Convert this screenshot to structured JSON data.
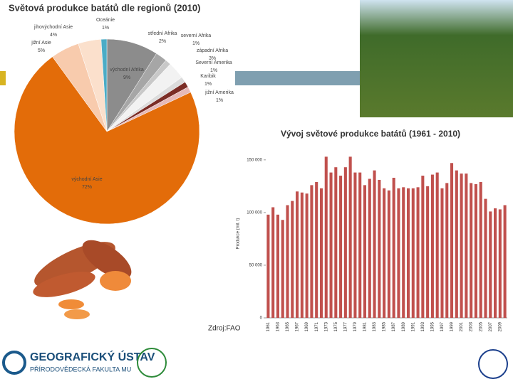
{
  "chart_data": [
    {
      "type": "pie",
      "title": "Světová produkce batátů dle regionů (2010)",
      "categories": [
        "východní Afrika",
        "střední Afrika",
        "severní Afrika",
        "západní Afrika",
        "Severní Amerika",
        "Karibik",
        "jižní Amerika",
        "východní Asie",
        "jižní Asie",
        "jihovýchodní Asie",
        "Oceánie"
      ],
      "values": [
        9,
        2,
        1,
        3,
        1,
        1,
        1,
        72,
        5,
        4,
        1
      ],
      "value_labels": [
        "9%",
        "2%",
        "1%",
        "3%",
        "1%",
        "1%",
        "1%",
        "72%",
        "5%",
        "4%",
        "1%"
      ],
      "colors": [
        "#8c8c8c",
        "#a6a6a6",
        "#c8c8c8",
        "#f2f2f2",
        "#dcdcdc",
        "#7b2d26",
        "#e6b9b8",
        "#e36c09",
        "#f8cbad",
        "#fbe0cc",
        "#4bacc6"
      ]
    },
    {
      "type": "bar",
      "title": "Vývoj světové produkce batátů (1961 - 2010)",
      "y_label": "Produkce (mil. t)",
      "categories": [
        "1961",
        null,
        "1963",
        null,
        "1965",
        null,
        "1967",
        null,
        "1969",
        null,
        "1971",
        null,
        "1973",
        null,
        "1975",
        null,
        "1977",
        null,
        "1979",
        null,
        "1981",
        null,
        "1983",
        null,
        "1985",
        null,
        "1987",
        null,
        "1989",
        null,
        "1991",
        null,
        "1993",
        null,
        "1995",
        null,
        "1997",
        null,
        "1999",
        null,
        "2001",
        null,
        "2003",
        null,
        "2005",
        null,
        "2007",
        null,
        "2009",
        null
      ],
      "values": [
        98000,
        105000,
        98000,
        93000,
        107000,
        111000,
        120000,
        119000,
        118000,
        126000,
        129000,
        123000,
        153000,
        138000,
        143000,
        135000,
        143000,
        153000,
        138000,
        138000,
        126000,
        132000,
        140000,
        131000,
        123000,
        121000,
        133000,
        123000,
        124000,
        123000,
        123000,
        124000,
        135000,
        125000,
        136000,
        138000,
        123000,
        128000,
        147000,
        140000,
        137000,
        137000,
        128000,
        127000,
        129000,
        113000,
        101000,
        104000,
        103000,
        107000
      ],
      "color": "#c0504d",
      "ylim": [
        0,
        160000
      ],
      "yticks": [
        {
          "value": 0,
          "label": "0"
        },
        {
          "value": 50000,
          "label": "50 000"
        },
        {
          "value": 100000,
          "label": "100 000"
        },
        {
          "value": 150000,
          "label": "150 000"
        }
      ],
      "grid": false
    }
  ],
  "source": "Zdroj:FAO",
  "footer": {
    "institute": "GEOGRAFICKÝ ÚSTAV",
    "faculty": "PŘÍRODOVĚDECKÁ FAKULTA MU"
  }
}
